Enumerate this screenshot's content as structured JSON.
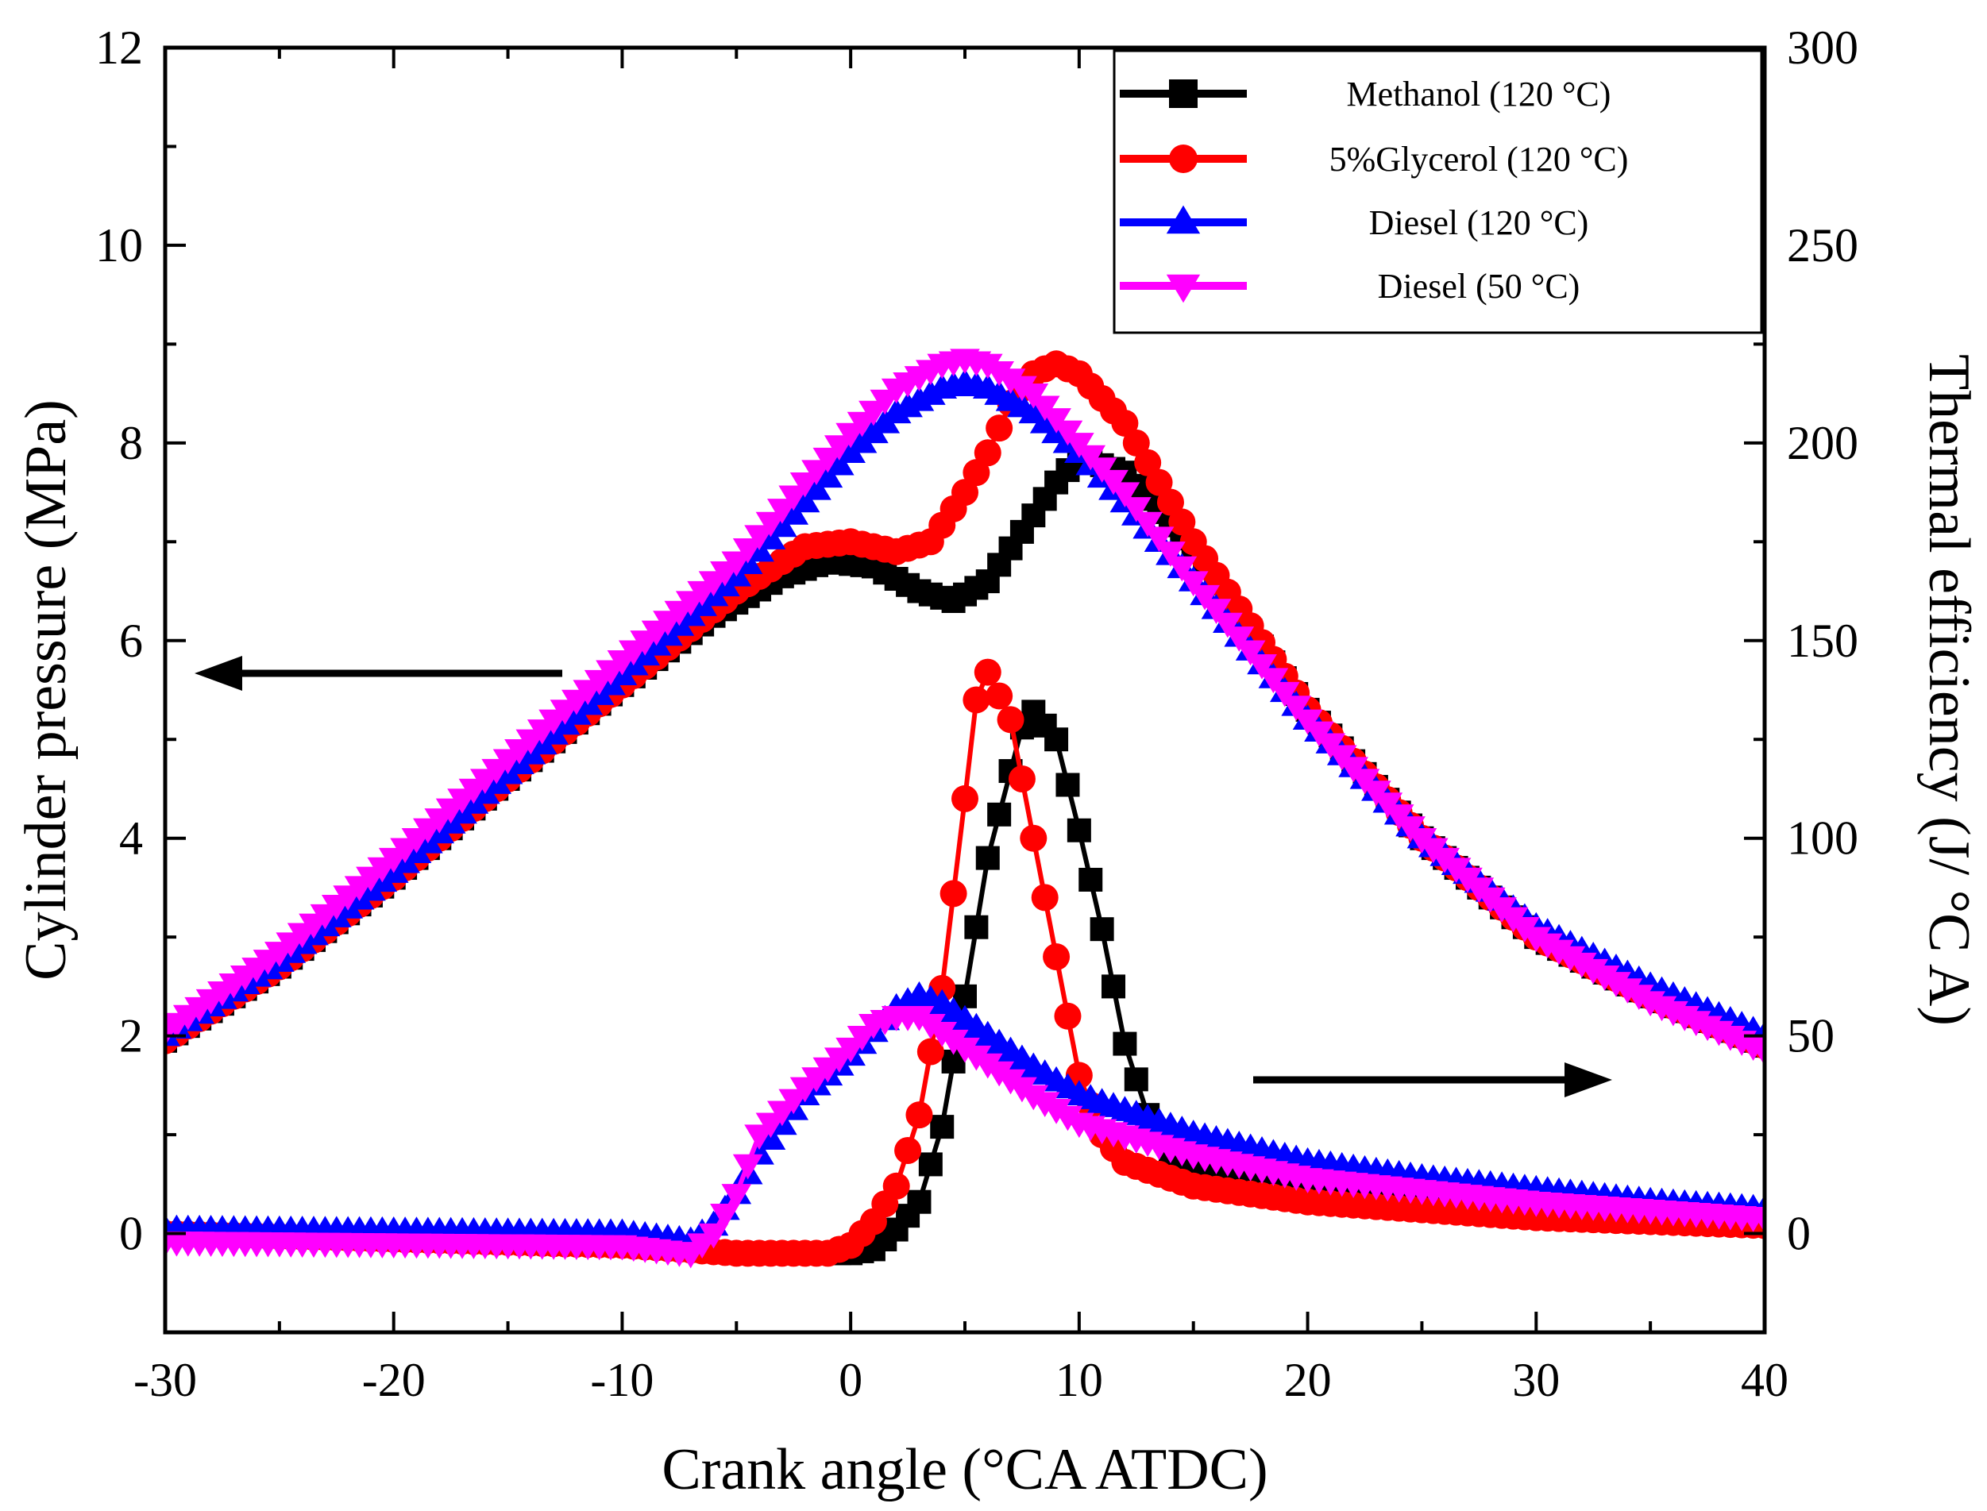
{
  "chart_data": {
    "type": "line",
    "title": "",
    "xlabel": "Crank angle (°CA ATDC)",
    "ylabel_left": "Cylinder pressure (MPa)",
    "ylabel_right": "Thermal efficiency (J/ °C A)",
    "xlim": [
      -30,
      40
    ],
    "ylim_left": [
      -1,
      12
    ],
    "ylim_right": [
      -25,
      300
    ],
    "x_ticks": [
      "-30",
      "-20",
      "-10",
      "0",
      "10",
      "20",
      "30",
      "40"
    ],
    "y_left_ticks": [
      "0",
      "2",
      "4",
      "6",
      "8",
      "10",
      "12"
    ],
    "y_right_ticks": [
      "0",
      "50",
      "100",
      "150",
      "200",
      "250",
      "300"
    ],
    "grid": false,
    "legend_position": "top-right",
    "annotations": [
      "arrow pointing left toward pressure axis",
      "arrow pointing right toward heat release axis"
    ],
    "series": [
      {
        "name": "Methanol (120 °C)",
        "color": "#000000",
        "marker": "square",
        "pressure_points": [
          [
            -30,
            1.95
          ],
          [
            -25,
            2.7
          ],
          [
            -20,
            3.6
          ],
          [
            -15,
            4.6
          ],
          [
            -10,
            5.55
          ],
          [
            -6,
            6.25
          ],
          [
            -3,
            6.65
          ],
          [
            -1,
            6.8
          ],
          [
            1,
            6.75
          ],
          [
            3,
            6.5
          ],
          [
            4.5,
            6.4
          ],
          [
            6,
            6.6
          ],
          [
            7.5,
            7.1
          ],
          [
            9,
            7.6
          ],
          [
            10,
            7.85
          ],
          [
            12,
            7.7
          ],
          [
            15,
            6.9
          ],
          [
            20,
            5.3
          ],
          [
            25,
            4.0
          ],
          [
            30,
            3.0
          ],
          [
            35,
            2.4
          ],
          [
            40,
            1.9
          ]
        ],
        "heat_release_points": [
          [
            -30,
            0
          ],
          [
            -10,
            -3
          ],
          [
            -5,
            -5
          ],
          [
            0,
            -5
          ],
          [
            1,
            -4
          ],
          [
            2,
            1
          ],
          [
            3,
            8
          ],
          [
            4,
            27
          ],
          [
            5,
            60
          ],
          [
            6,
            95
          ],
          [
            7,
            117
          ],
          [
            7.5,
            128
          ],
          [
            8,
            132
          ],
          [
            9,
            125
          ],
          [
            10,
            102
          ],
          [
            11,
            77
          ],
          [
            12,
            48
          ],
          [
            13,
            30
          ],
          [
            14,
            20
          ],
          [
            20,
            10
          ],
          [
            30,
            5
          ],
          [
            40,
            2
          ]
        ]
      },
      {
        "name": "5%Glycerol (120 °C)",
        "color": "#ff0000",
        "marker": "circle",
        "pressure_points": [
          [
            -30,
            1.95
          ],
          [
            -25,
            2.7
          ],
          [
            -20,
            3.6
          ],
          [
            -15,
            4.6
          ],
          [
            -10,
            5.55
          ],
          [
            -5,
            6.5
          ],
          [
            -2,
            6.95
          ],
          [
            0,
            7.0
          ],
          [
            2,
            6.9
          ],
          [
            3.5,
            7.0
          ],
          [
            5,
            7.5
          ],
          [
            6,
            7.9
          ],
          [
            7,
            8.4
          ],
          [
            8,
            8.7
          ],
          [
            9,
            8.8
          ],
          [
            10,
            8.7
          ],
          [
            12,
            8.2
          ],
          [
            15,
            7.0
          ],
          [
            20,
            5.3
          ],
          [
            25,
            4.0
          ],
          [
            30,
            3.0
          ],
          [
            35,
            2.4
          ],
          [
            40,
            1.9
          ]
        ],
        "heat_release_points": [
          [
            -30,
            0
          ],
          [
            -10,
            -3
          ],
          [
            -5,
            -5
          ],
          [
            -1,
            -5
          ],
          [
            0,
            -3
          ],
          [
            1,
            3
          ],
          [
            2,
            12
          ],
          [
            3,
            30
          ],
          [
            4,
            62
          ],
          [
            5,
            110
          ],
          [
            5.5,
            135
          ],
          [
            6,
            142
          ],
          [
            7,
            130
          ],
          [
            8,
            100
          ],
          [
            9,
            70
          ],
          [
            10,
            40
          ],
          [
            11,
            25
          ],
          [
            12,
            18
          ],
          [
            15,
            12
          ],
          [
            20,
            8
          ],
          [
            30,
            4
          ],
          [
            40,
            2
          ]
        ]
      },
      {
        "name": "Diesel (120 °C)",
        "color": "#0000ff",
        "marker": "triangle-up",
        "pressure_points": [
          [
            -30,
            2.0
          ],
          [
            -25,
            2.75
          ],
          [
            -20,
            3.65
          ],
          [
            -15,
            4.65
          ],
          [
            -10,
            5.65
          ],
          [
            -5,
            6.65
          ],
          [
            -2,
            7.4
          ],
          [
            0,
            7.9
          ],
          [
            2,
            8.3
          ],
          [
            4,
            8.55
          ],
          [
            5,
            8.6
          ],
          [
            6,
            8.55
          ],
          [
            8,
            8.3
          ],
          [
            10,
            7.9
          ],
          [
            12,
            7.4
          ],
          [
            15,
            6.6
          ],
          [
            20,
            5.2
          ],
          [
            25,
            4.0
          ],
          [
            30,
            3.1
          ],
          [
            35,
            2.5
          ],
          [
            40,
            2.0
          ]
        ],
        "heat_release_points": [
          [
            -30,
            1
          ],
          [
            -10,
            0
          ],
          [
            -7,
            -2
          ],
          [
            -6,
            2
          ],
          [
            -5,
            10
          ],
          [
            -4,
            20
          ],
          [
            -2,
            35
          ],
          [
            0,
            45
          ],
          [
            2,
            57
          ],
          [
            3,
            60
          ],
          [
            4,
            58
          ],
          [
            6,
            50
          ],
          [
            8,
            42
          ],
          [
            10,
            35
          ],
          [
            15,
            25
          ],
          [
            20,
            18
          ],
          [
            25,
            14
          ],
          [
            30,
            11
          ],
          [
            35,
            8
          ],
          [
            40,
            6
          ]
        ]
      },
      {
        "name": "Diesel (50 °C)",
        "color": "#ff00ff",
        "marker": "triangle-down",
        "pressure_points": [
          [
            -30,
            2.05
          ],
          [
            -25,
            2.85
          ],
          [
            -20,
            3.8
          ],
          [
            -15,
            4.8
          ],
          [
            -10,
            5.8
          ],
          [
            -5,
            6.8
          ],
          [
            -2,
            7.6
          ],
          [
            0,
            8.1
          ],
          [
            2,
            8.55
          ],
          [
            4,
            8.8
          ],
          [
            5,
            8.85
          ],
          [
            6,
            8.8
          ],
          [
            8,
            8.5
          ],
          [
            10,
            8.0
          ],
          [
            12,
            7.5
          ],
          [
            15,
            6.6
          ],
          [
            20,
            5.2
          ],
          [
            25,
            4.0
          ],
          [
            30,
            3.0
          ],
          [
            35,
            2.35
          ],
          [
            40,
            1.85
          ]
        ],
        "heat_release_points": [
          [
            -30,
            -2
          ],
          [
            -10,
            -3
          ],
          [
            -7,
            -5
          ],
          [
            -6,
            0
          ],
          [
            -5,
            10
          ],
          [
            -4,
            25
          ],
          [
            -2,
            37
          ],
          [
            0,
            47
          ],
          [
            1,
            53
          ],
          [
            2,
            55
          ],
          [
            3,
            55
          ],
          [
            4,
            51
          ],
          [
            6,
            43
          ],
          [
            8,
            35
          ],
          [
            10,
            28
          ],
          [
            15,
            20
          ],
          [
            20,
            14
          ],
          [
            25,
            11
          ],
          [
            30,
            8
          ],
          [
            35,
            6
          ],
          [
            40,
            4
          ]
        ]
      }
    ]
  }
}
